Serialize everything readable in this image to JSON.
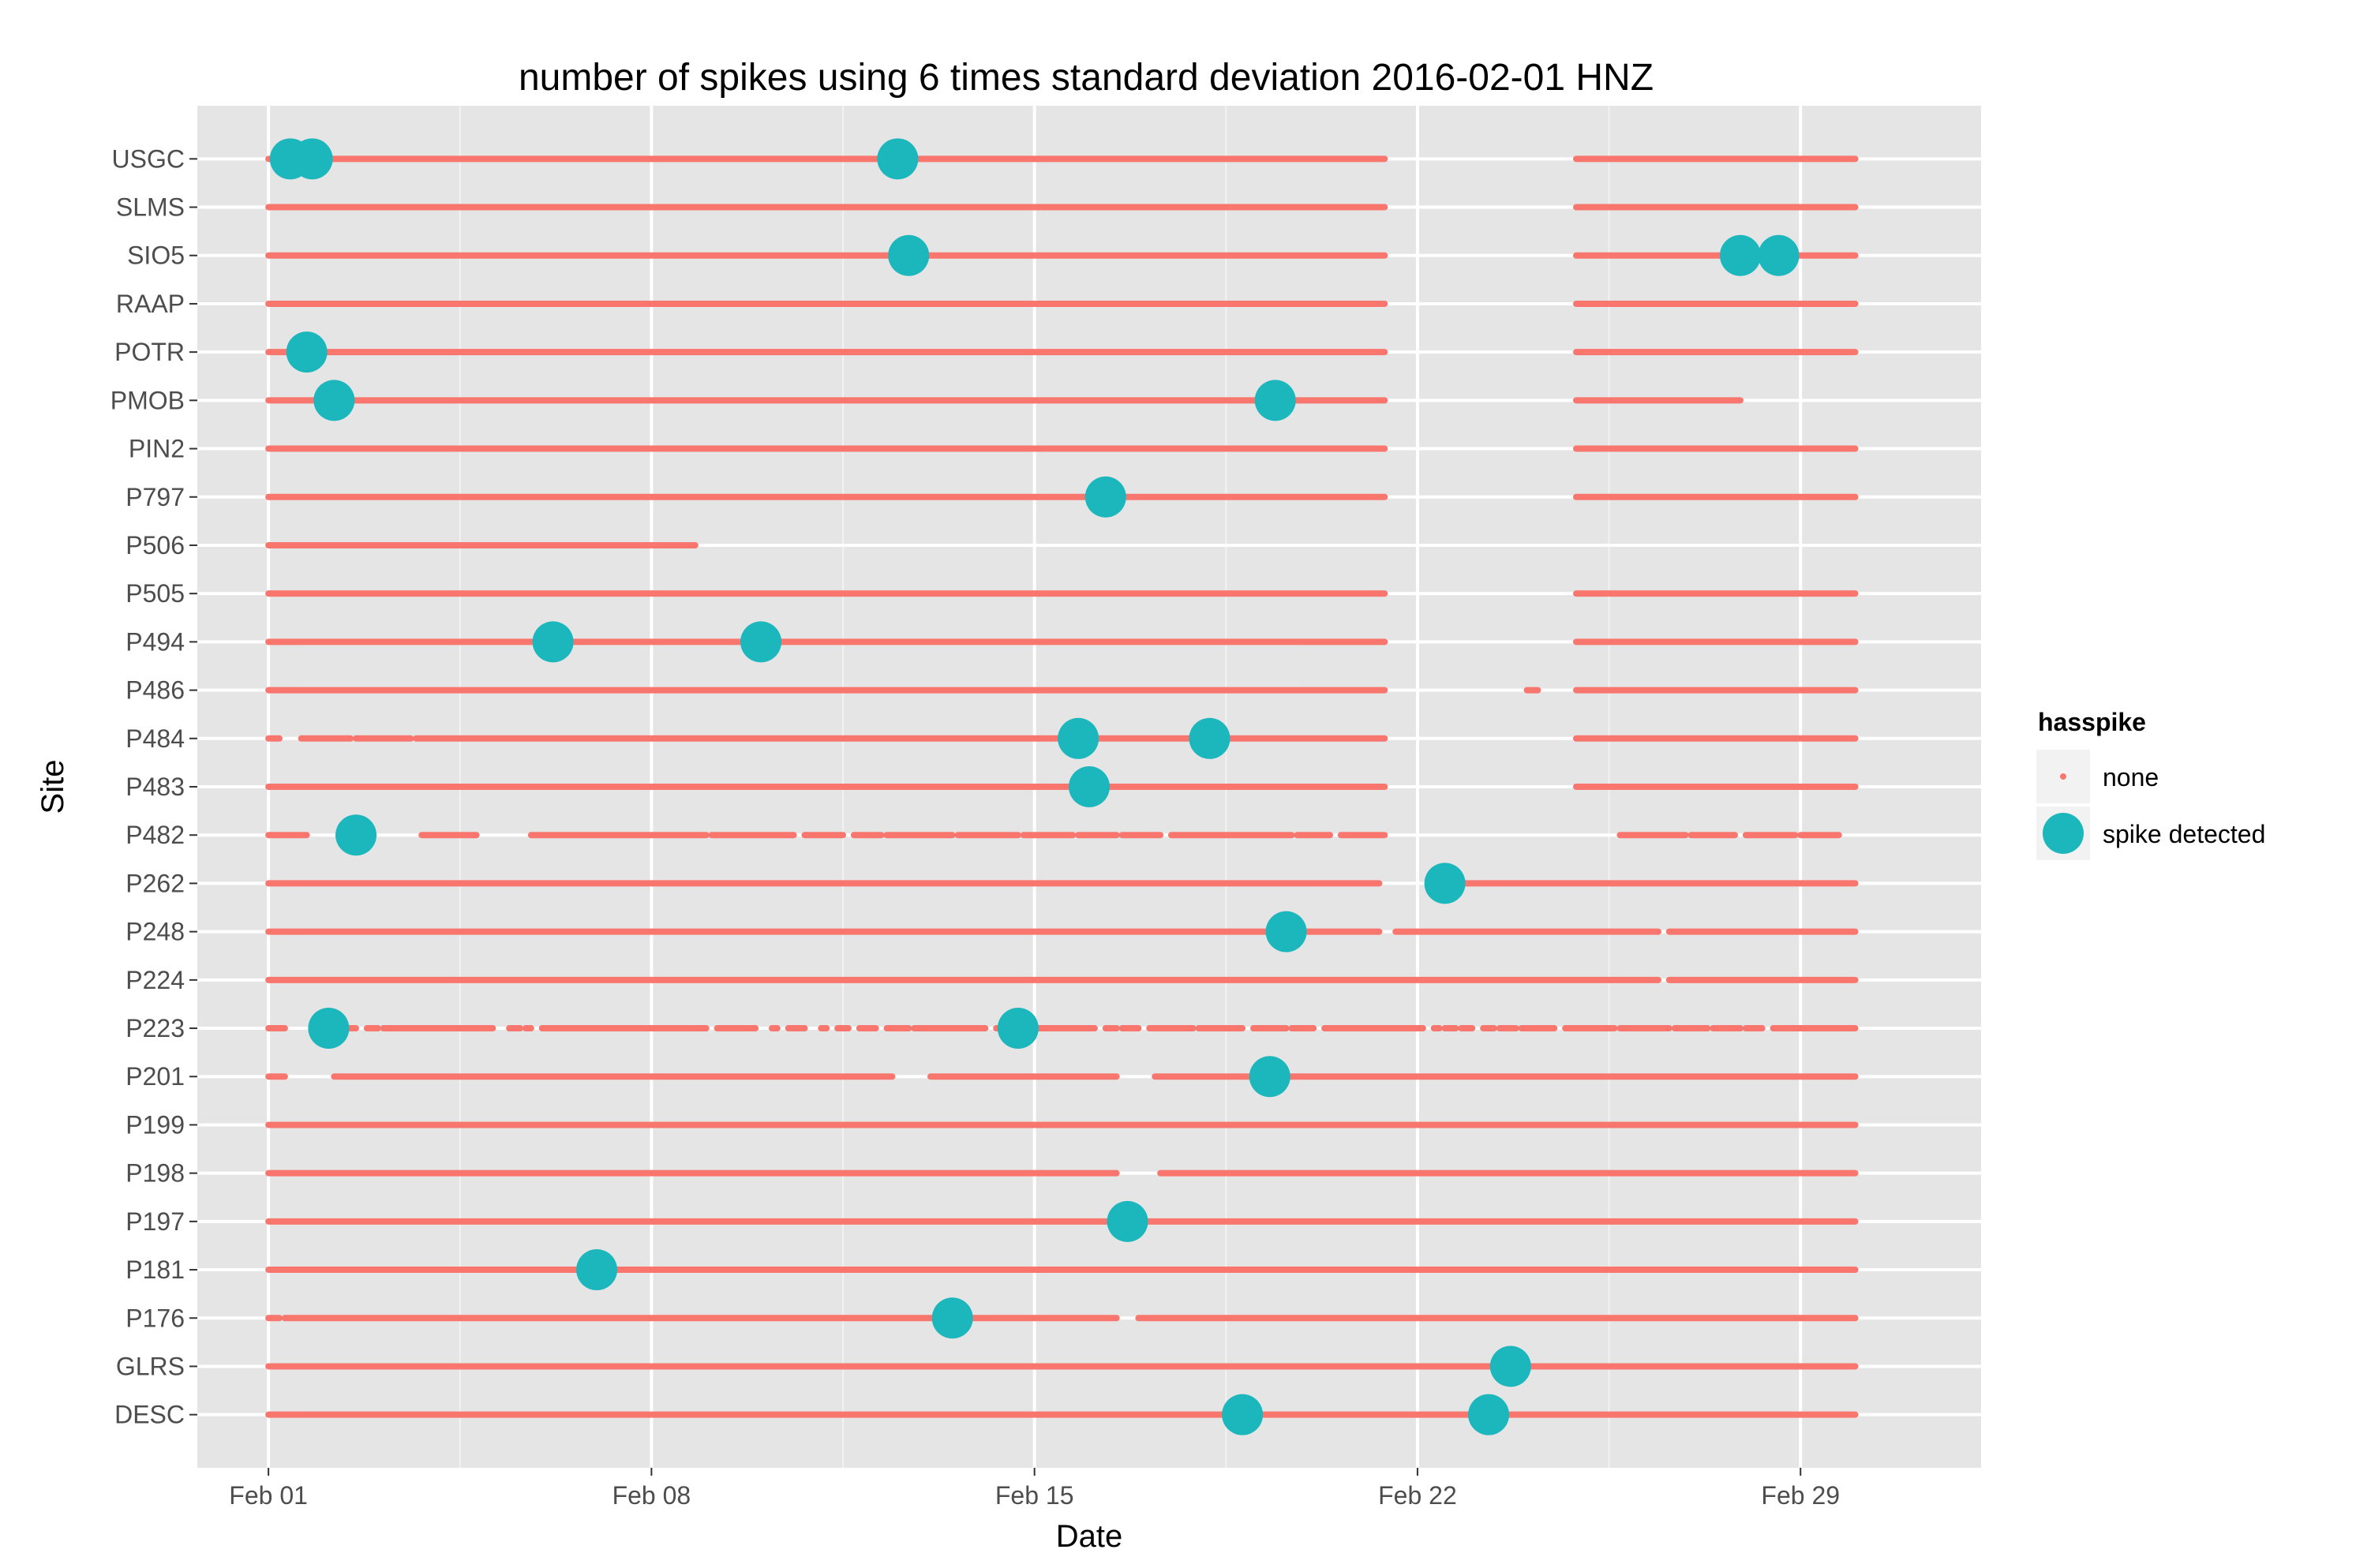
{
  "chart_data": {
    "type": "scatter",
    "title": "number of spikes using  6 times standard deviation 2016-02-01 HNZ",
    "xlabel": "Date",
    "ylabel": "Site",
    "x_domain": [
      -1.3,
      31.3
    ],
    "x_ticks": [
      {
        "value": 0,
        "label": "Feb 01"
      },
      {
        "value": 7,
        "label": "Feb 08"
      },
      {
        "value": 14,
        "label": "Feb 15"
      },
      {
        "value": 21,
        "label": "Feb 22"
      },
      {
        "value": 28,
        "label": "Feb 29"
      }
    ],
    "legend": {
      "title": "hasspike",
      "position": "right",
      "entries": [
        {
          "label": "none",
          "color": "#F8766D"
        },
        {
          "label": "spike detected",
          "color": "#00BFC4"
        }
      ]
    },
    "colors": {
      "none": "#F8766D",
      "spike": "#1CB7BD",
      "panel": "#E5E5E5",
      "grid": "#FFFFFF"
    },
    "sites": [
      {
        "name": "USGC",
        "segments": [
          [
            0,
            20.4
          ],
          [
            23.9,
            29
          ]
        ],
        "spikes": [
          0.4,
          0.8,
          11.5
        ]
      },
      {
        "name": "SLMS",
        "segments": [
          [
            0,
            20.4
          ],
          [
            23.9,
            29
          ]
        ],
        "spikes": []
      },
      {
        "name": "SIO5",
        "segments": [
          [
            0,
            20.4
          ],
          [
            23.9,
            29
          ]
        ],
        "spikes": [
          11.7,
          26.9,
          27.6
        ]
      },
      {
        "name": "RAAP",
        "segments": [
          [
            0,
            20.4
          ],
          [
            23.9,
            29
          ]
        ],
        "spikes": []
      },
      {
        "name": "POTR",
        "segments": [
          [
            0,
            20.4
          ],
          [
            23.9,
            29
          ]
        ],
        "spikes": [
          0.7
        ]
      },
      {
        "name": "PMOB",
        "segments": [
          [
            0,
            20.4
          ],
          [
            23.9,
            26.9
          ]
        ],
        "spikes": [
          1.2,
          18.4
        ]
      },
      {
        "name": "PIN2",
        "segments": [
          [
            0,
            20.4
          ],
          [
            23.9,
            29
          ]
        ],
        "spikes": []
      },
      {
        "name": "P797",
        "segments": [
          [
            0,
            20.4
          ],
          [
            23.9,
            29
          ]
        ],
        "spikes": [
          15.3
        ]
      },
      {
        "name": "P506",
        "segments": [
          [
            0,
            7.8
          ]
        ],
        "spikes": []
      },
      {
        "name": "P505",
        "segments": [
          [
            0,
            20.4
          ],
          [
            23.9,
            29
          ]
        ],
        "spikes": []
      },
      {
        "name": "P494",
        "segments": [
          [
            0,
            20.4
          ],
          [
            23.9,
            29
          ]
        ],
        "spikes": [
          5.2,
          9.0
        ]
      },
      {
        "name": "P486",
        "segments": [
          [
            0,
            20.4
          ],
          [
            23.0,
            23.2
          ],
          [
            23.9,
            29
          ]
        ],
        "spikes": []
      },
      {
        "name": "P484",
        "segments": [
          [
            0,
            0.2
          ],
          [
            0.6,
            1.5
          ],
          [
            1.6,
            2.6
          ],
          [
            2.7,
            20.4
          ],
          [
            23.9,
            29
          ]
        ],
        "spikes": [
          14.8,
          17.2
        ]
      },
      {
        "name": "P483",
        "segments": [
          [
            0,
            20.4
          ],
          [
            23.9,
            29
          ]
        ],
        "spikes": [
          15.0
        ]
      },
      {
        "name": "P482",
        "segments": [
          [
            0,
            0.7
          ],
          [
            2.8,
            3.8
          ],
          [
            4.8,
            8.0
          ],
          [
            8.1,
            9.6
          ],
          [
            9.8,
            10.5
          ],
          [
            10.7,
            11.2
          ],
          [
            11.3,
            12.5
          ],
          [
            12.6,
            13.7
          ],
          [
            13.8,
            14.7
          ],
          [
            14.8,
            15.5
          ],
          [
            15.6,
            16.3
          ],
          [
            16.5,
            18.7
          ],
          [
            18.8,
            19.4
          ],
          [
            19.6,
            20.4
          ],
          [
            24.7,
            25.9
          ],
          [
            26.0,
            26.8
          ],
          [
            27.0,
            27.9
          ],
          [
            28.0,
            28.7
          ]
        ],
        "spikes": [
          1.6
        ]
      },
      {
        "name": "P262",
        "segments": [
          [
            0,
            20.3
          ],
          [
            21.4,
            29
          ]
        ],
        "spikes": [
          21.5
        ]
      },
      {
        "name": "P248",
        "segments": [
          [
            0,
            20.3
          ],
          [
            20.6,
            25.4
          ],
          [
            25.6,
            29
          ]
        ],
        "spikes": [
          18.6
        ]
      },
      {
        "name": "P224",
        "segments": [
          [
            0,
            25.4
          ],
          [
            25.6,
            29
          ]
        ],
        "spikes": []
      },
      {
        "name": "P223",
        "segments": [
          [
            0,
            0.3
          ],
          [
            0.9,
            1.3
          ],
          [
            1.4,
            1.6
          ],
          [
            1.8,
            2.0
          ],
          [
            2.1,
            4.1
          ],
          [
            4.4,
            4.6
          ],
          [
            4.7,
            4.8
          ],
          [
            5.0,
            8.0
          ],
          [
            8.2,
            8.9
          ],
          [
            9.2,
            9.3
          ],
          [
            9.5,
            9.8
          ],
          [
            10.1,
            10.2
          ],
          [
            10.4,
            10.6
          ],
          [
            10.8,
            11.1
          ],
          [
            11.3,
            11.7
          ],
          [
            11.8,
            13.1
          ],
          [
            13.3,
            15.1
          ],
          [
            15.3,
            15.5
          ],
          [
            15.6,
            15.9
          ],
          [
            16.1,
            16.9
          ],
          [
            17.0,
            17.8
          ],
          [
            18.0,
            18.6
          ],
          [
            18.7,
            19.1
          ],
          [
            19.3,
            21.1
          ],
          [
            21.3,
            21.4
          ],
          [
            21.5,
            21.7
          ],
          [
            21.8,
            22.0
          ],
          [
            22.2,
            22.4
          ],
          [
            22.5,
            22.8
          ],
          [
            22.9,
            23.5
          ],
          [
            23.7,
            24.6
          ],
          [
            24.7,
            25.6
          ],
          [
            25.7,
            26.3
          ],
          [
            26.4,
            26.9
          ],
          [
            27.0,
            27.3
          ],
          [
            27.5,
            29
          ]
        ],
        "spikes": [
          1.1,
          13.7
        ]
      },
      {
        "name": "P201",
        "segments": [
          [
            0,
            0.3
          ],
          [
            1.2,
            11.4
          ],
          [
            12.1,
            15.5
          ],
          [
            16.2,
            29
          ]
        ],
        "spikes": [
          18.3
        ]
      },
      {
        "name": "P199",
        "segments": [
          [
            0,
            29
          ]
        ],
        "spikes": []
      },
      {
        "name": "P198",
        "segments": [
          [
            0,
            15.5
          ],
          [
            16.3,
            29
          ]
        ],
        "spikes": []
      },
      {
        "name": "P197",
        "segments": [
          [
            0,
            29
          ]
        ],
        "spikes": [
          15.7
        ]
      },
      {
        "name": "P181",
        "segments": [
          [
            0,
            29
          ]
        ],
        "spikes": [
          6.0
        ]
      },
      {
        "name": "P176",
        "segments": [
          [
            0,
            0.2
          ],
          [
            0.3,
            15.5
          ],
          [
            15.9,
            29
          ]
        ],
        "spikes": [
          12.5
        ]
      },
      {
        "name": "GLRS",
        "segments": [
          [
            0,
            29
          ]
        ],
        "spikes": [
          22.7
        ]
      },
      {
        "name": "DESC",
        "segments": [
          [
            0,
            29
          ]
        ],
        "spikes": [
          17.8,
          22.3
        ]
      }
    ]
  }
}
